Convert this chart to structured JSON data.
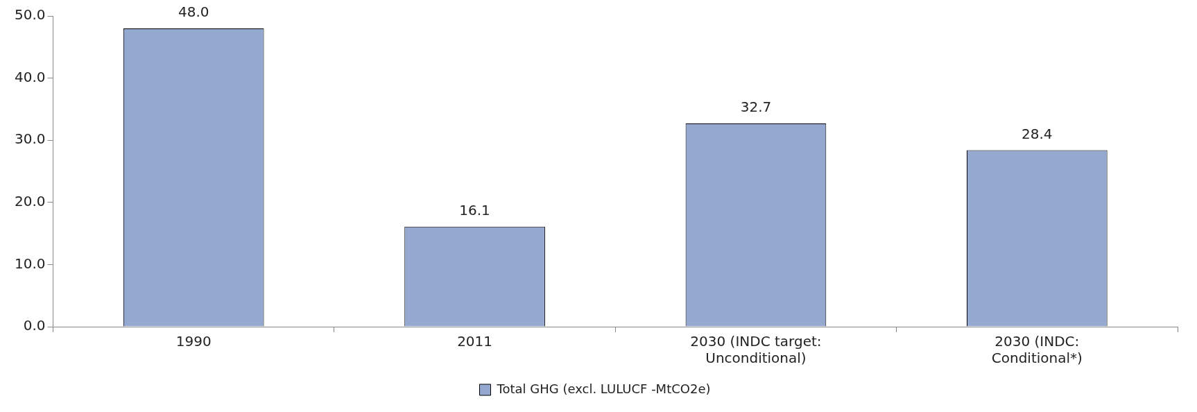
{
  "chart_data": {
    "type": "bar",
    "categories": [
      "1990",
      "2011",
      "2030 (INDC target: Unconditional)",
      "2030 (INDC: Conditional*)"
    ],
    "series": [
      {
        "name": "Total GHG (excl. LULUCF -MtCO2e)",
        "color": "#95a9d0",
        "values": [
          48.0,
          16.1,
          32.7,
          28.4
        ],
        "value_labels": [
          "48.0",
          "16.1",
          "32.7",
          "28.4"
        ]
      }
    ],
    "ylim": [
      0,
      50
    ],
    "yticks": [
      {
        "value": 0,
        "label": "0.0"
      },
      {
        "value": 10,
        "label": "10.0"
      },
      {
        "value": 20,
        "label": "20.0"
      },
      {
        "value": 30,
        "label": "30.0"
      },
      {
        "value": 40,
        "label": "40.0"
      },
      {
        "value": 50,
        "label": "50.0"
      }
    ],
    "grid": false,
    "legend": "bottom"
  }
}
